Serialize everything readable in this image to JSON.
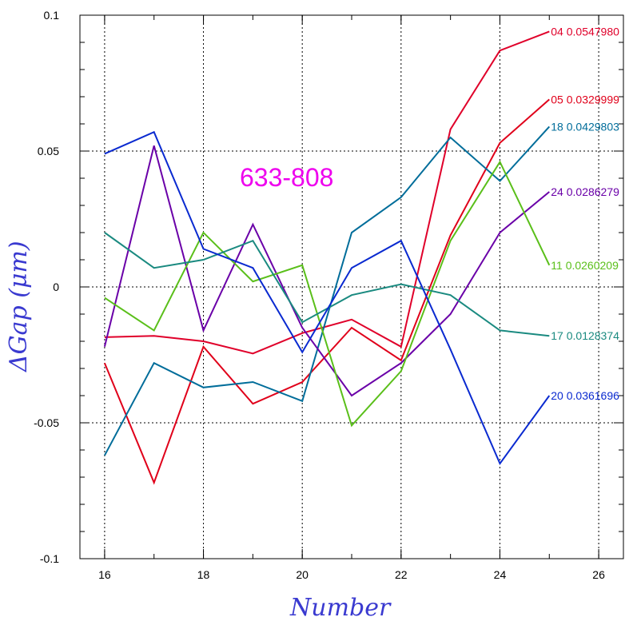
{
  "chart_data": {
    "type": "line",
    "title": "633-808",
    "xlabel": "Number",
    "ylabel": "ΔGap (μm)",
    "xlim": [
      15.5,
      26.5
    ],
    "ylim": [
      -0.1,
      0.1
    ],
    "x_ticks": [
      "16",
      "18",
      "20",
      "22",
      "24",
      "26"
    ],
    "y_ticks": [
      "0.1",
      "0.05",
      "0",
      "-0.05",
      "-0.1"
    ],
    "grid": true,
    "series": [
      {
        "name": "04 0.0547980",
        "color": "#e0002a",
        "x": [
          16,
          17,
          18,
          19,
          20,
          21,
          22,
          23,
          24,
          25
        ],
        "y": [
          -0.0185,
          -0.018,
          -0.02,
          -0.0245,
          -0.017,
          -0.012,
          -0.022,
          0.058,
          0.087,
          0.094
        ]
      },
      {
        "name": "05 0.0329999",
        "color": "#e0001a",
        "x": [
          16,
          17,
          18,
          19,
          20,
          21,
          22,
          23,
          24,
          25
        ],
        "y": [
          -0.028,
          -0.072,
          -0.022,
          -0.043,
          -0.035,
          -0.015,
          -0.027,
          0.019,
          0.053,
          0.069
        ]
      },
      {
        "name": "18 0.0429803",
        "color": "#006d9a",
        "x": [
          16,
          17,
          18,
          19,
          20,
          21,
          22,
          23,
          24,
          25
        ],
        "y": [
          -0.062,
          -0.028,
          -0.037,
          -0.035,
          -0.042,
          0.02,
          0.033,
          0.055,
          0.039,
          0.059
        ]
      },
      {
        "name": "24 0.0286279",
        "color": "#6a00a8",
        "x": [
          16,
          17,
          18,
          19,
          20,
          21,
          22,
          23,
          24,
          25
        ],
        "y": [
          -0.022,
          0.052,
          -0.016,
          0.023,
          -0.015,
          -0.04,
          -0.028,
          -0.01,
          0.02,
          0.035
        ]
      },
      {
        "name": "11 0.0260209",
        "color": "#5abf1a",
        "x": [
          16,
          17,
          18,
          19,
          20,
          21,
          22,
          23,
          24,
          25
        ],
        "y": [
          -0.004,
          -0.016,
          0.02,
          0.002,
          0.008,
          -0.051,
          -0.031,
          0.017,
          0.046,
          0.008
        ]
      },
      {
        "name": "17 0.0128374",
        "color": "#1a8a80",
        "x": [
          16,
          17,
          18,
          19,
          20,
          21,
          22,
          23,
          24,
          25
        ],
        "y": [
          0.02,
          0.007,
          0.01,
          0.017,
          -0.013,
          -0.003,
          0.001,
          -0.003,
          -0.016,
          -0.018
        ]
      },
      {
        "name": "20 0.0361696",
        "color": "#0a2ad0",
        "x": [
          16,
          17,
          18,
          19,
          20,
          21,
          22,
          23,
          24,
          25
        ],
        "y": [
          0.049,
          0.057,
          0.014,
          0.007,
          -0.024,
          0.007,
          0.017,
          -0.023,
          -0.065,
          -0.04
        ]
      }
    ]
  }
}
